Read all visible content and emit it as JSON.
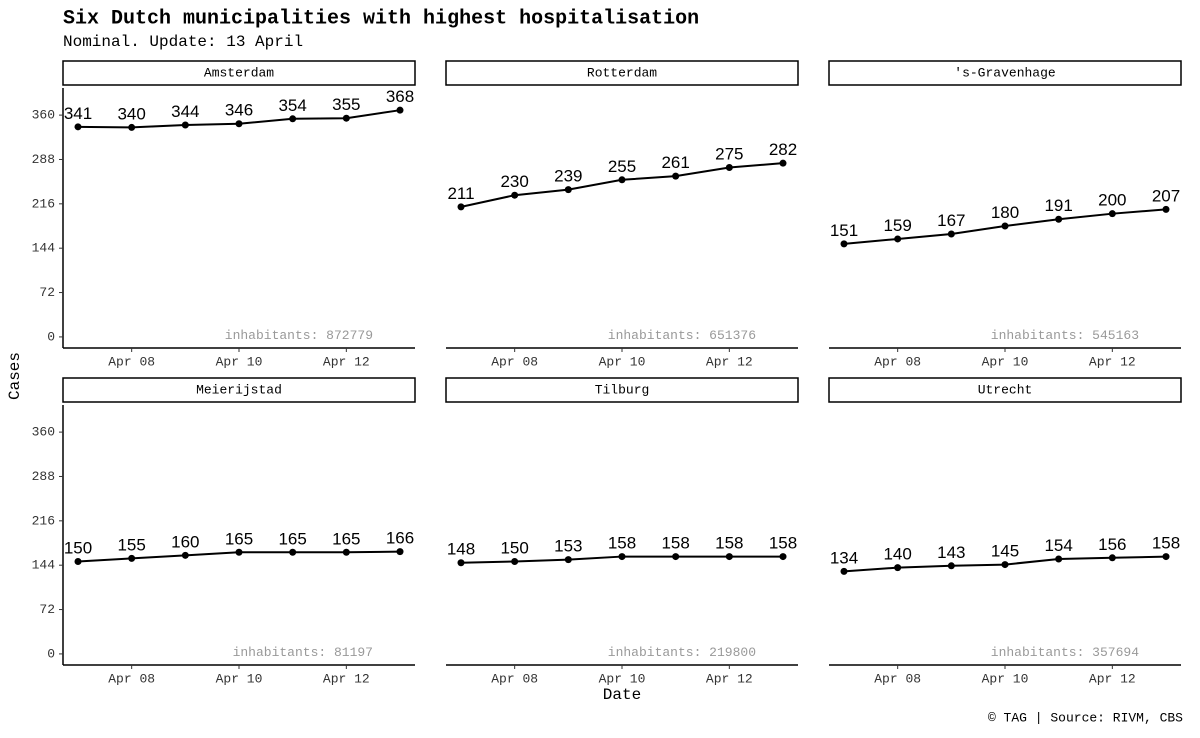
{
  "title": "Six Dutch municipalities with highest hospitalisation",
  "subtitle": "Nominal. Update: 13 April",
  "x_label": "Date",
  "y_label": "Cases",
  "caption": "© TAG | Source: RIVM, CBS",
  "chart_data": [
    {
      "type": "line",
      "title": "Amsterdam",
      "x": [
        "Apr 07",
        "Apr 08",
        "Apr 09",
        "Apr 10",
        "Apr 11",
        "Apr 12",
        "Apr 13"
      ],
      "values": [
        341,
        340,
        344,
        346,
        354,
        355,
        368
      ],
      "color": "#000000",
      "ylim": [
        -18,
        404
      ],
      "yticks": [
        0,
        72,
        144,
        216,
        288,
        360
      ],
      "xticks": [
        "Apr 08",
        "Apr 10",
        "Apr 12"
      ],
      "annotation": "inhabitants: 872779"
    },
    {
      "type": "line",
      "title": "Rotterdam",
      "x": [
        "Apr 07",
        "Apr 08",
        "Apr 09",
        "Apr 10",
        "Apr 11",
        "Apr 12",
        "Apr 13"
      ],
      "values": [
        211,
        230,
        239,
        255,
        261,
        275,
        282
      ],
      "color": "#000000",
      "ylim": [
        -18,
        404
      ],
      "xticks": [
        "Apr 08",
        "Apr 10",
        "Apr 12"
      ],
      "annotation": "inhabitants: 651376"
    },
    {
      "type": "line",
      "title": "'s-Gravenhage",
      "x": [
        "Apr 07",
        "Apr 08",
        "Apr 09",
        "Apr 10",
        "Apr 11",
        "Apr 12",
        "Apr 13"
      ],
      "values": [
        151,
        159,
        167,
        180,
        191,
        200,
        207
      ],
      "color": "#000000",
      "ylim": [
        -18,
        404
      ],
      "xticks": [
        "Apr 08",
        "Apr 10",
        "Apr 12"
      ],
      "annotation": "inhabitants: 545163"
    },
    {
      "type": "line",
      "title": "Meierijstad",
      "x": [
        "Apr 07",
        "Apr 08",
        "Apr 09",
        "Apr 10",
        "Apr 11",
        "Apr 12",
        "Apr 13"
      ],
      "values": [
        150,
        155,
        160,
        165,
        165,
        165,
        166
      ],
      "color": "#000000",
      "ylim": [
        -18,
        404
      ],
      "yticks": [
        0,
        72,
        144,
        216,
        288,
        360
      ],
      "xticks": [
        "Apr 08",
        "Apr 10",
        "Apr 12"
      ],
      "annotation": "inhabitants: 81197"
    },
    {
      "type": "line",
      "title": "Tilburg",
      "x": [
        "Apr 07",
        "Apr 08",
        "Apr 09",
        "Apr 10",
        "Apr 11",
        "Apr 12",
        "Apr 13"
      ],
      "values": [
        148,
        150,
        153,
        158,
        158,
        158,
        158
      ],
      "color": "#000000",
      "ylim": [
        -18,
        404
      ],
      "xticks": [
        "Apr 08",
        "Apr 10",
        "Apr 12"
      ],
      "annotation": "inhabitants: 219800"
    },
    {
      "type": "line",
      "title": "Utrecht",
      "x": [
        "Apr 07",
        "Apr 08",
        "Apr 09",
        "Apr 10",
        "Apr 11",
        "Apr 12",
        "Apr 13"
      ],
      "values": [
        134,
        140,
        143,
        145,
        154,
        156,
        158
      ],
      "color": "#000000",
      "ylim": [
        -18,
        404
      ],
      "xticks": [
        "Apr 08",
        "Apr 10",
        "Apr 12"
      ],
      "annotation": "inhabitants: 357694"
    }
  ]
}
